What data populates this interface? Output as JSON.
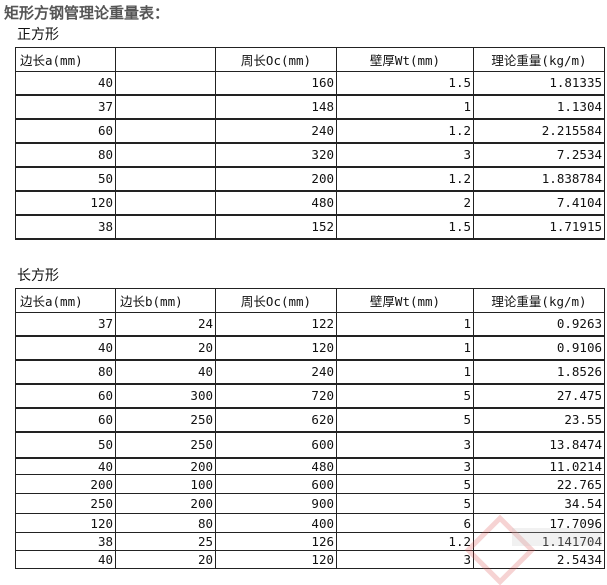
{
  "title": "矩形方钢管理论重量表：",
  "square": {
    "label": "正方形",
    "headers": [
      "边长a(mm)",
      "",
      "周长Oc(mm)",
      "壁厚Wt(mm)",
      "理论重量(kg/m)"
    ],
    "rows": [
      [
        "40",
        "",
        "160",
        "1.5",
        "1.81335"
      ],
      [
        "37",
        "",
        "148",
        "1",
        "1.1304"
      ],
      [
        "60",
        "",
        "240",
        "1.2",
        "2.215584"
      ],
      [
        "80",
        "",
        "320",
        "3",
        "7.2534"
      ],
      [
        "50",
        "",
        "200",
        "1.2",
        "1.838784"
      ],
      [
        "120",
        "",
        "480",
        "2",
        "7.4104"
      ],
      [
        "38",
        "",
        "152",
        "1.5",
        "1.71915"
      ]
    ]
  },
  "rect": {
    "label": "长方形",
    "headers": [
      "边长a(mm)",
      "边长b(mm)",
      "周长Oc(mm)",
      "壁厚Wt(mm)",
      "理论重量(kg/m)"
    ],
    "rows": [
      [
        "37",
        "24",
        "122",
        "1",
        "0.9263"
      ],
      [
        "40",
        "20",
        "120",
        "1",
        "0.9106"
      ],
      [
        "80",
        "40",
        "240",
        "1",
        "1.8526"
      ],
      [
        "60",
        "300",
        "720",
        "5",
        "27.475"
      ],
      [
        "60",
        "250",
        "620",
        "5",
        "23.55"
      ],
      [
        "50",
        "250",
        "600",
        "3",
        "13.8474"
      ],
      [
        "40",
        "200",
        "480",
        "3",
        "11.0214"
      ],
      [
        "200",
        "100",
        "600",
        "5",
        "22.765"
      ],
      [
        "250",
        "200",
        "900",
        "5",
        "34.54"
      ],
      [
        "120",
        "80",
        "400",
        "6",
        "17.7096"
      ],
      [
        "38",
        "25",
        "126",
        "1.2",
        "1.141704"
      ],
      [
        "40",
        "20",
        "120",
        "3",
        "2.5434"
      ]
    ]
  },
  "watermark": "元拓钢网"
}
